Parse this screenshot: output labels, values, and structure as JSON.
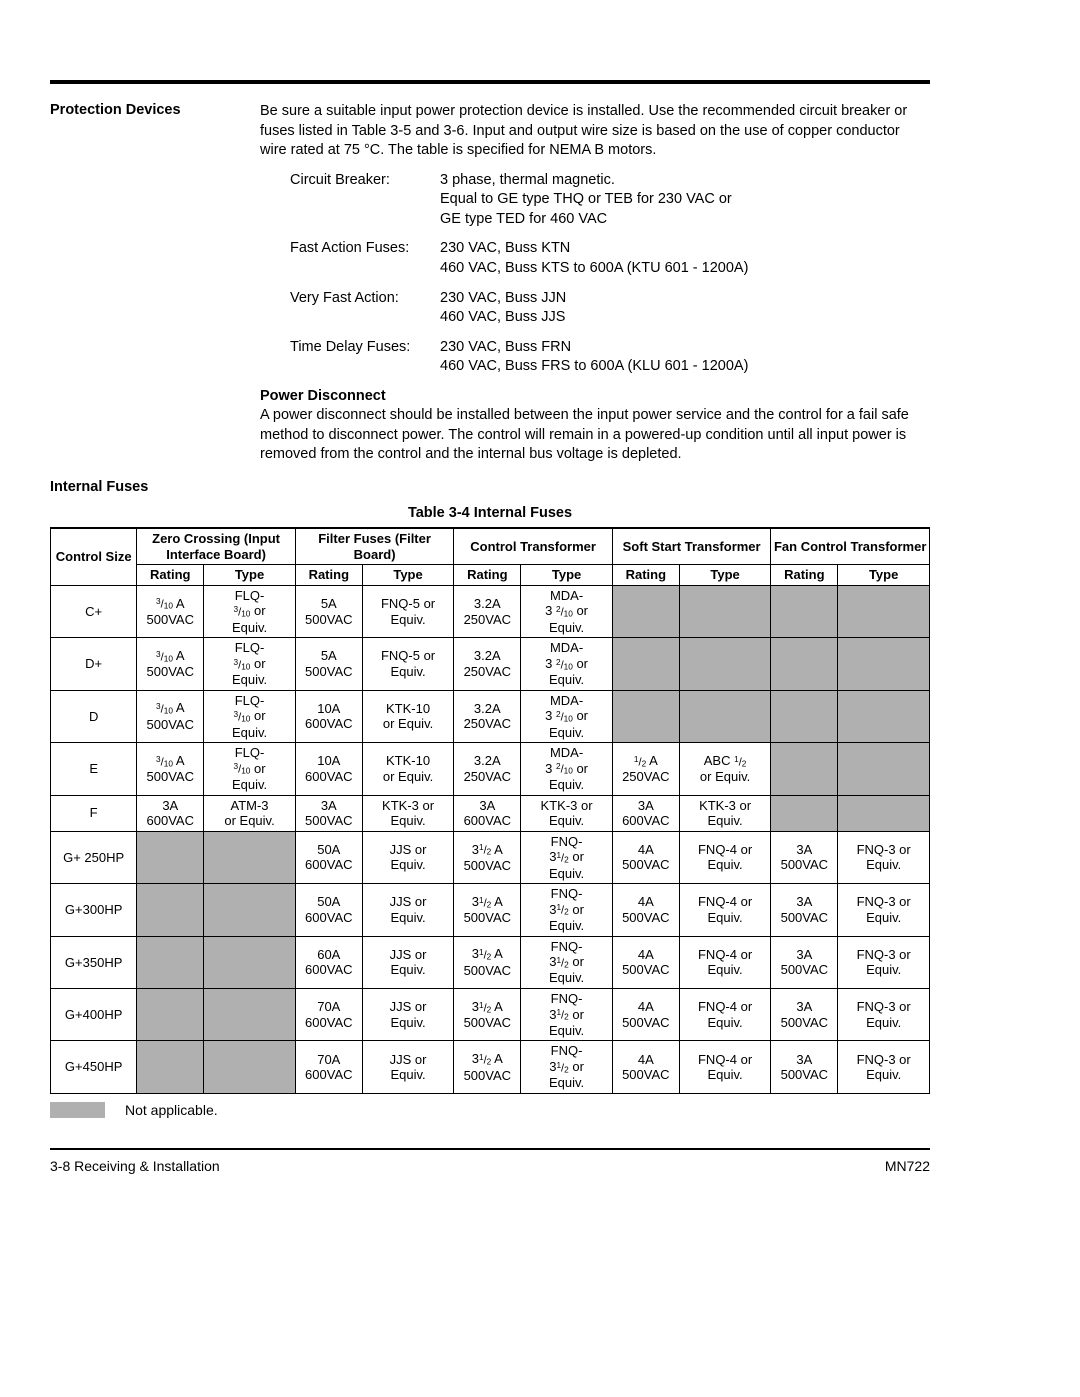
{
  "header_rule_color": "#000000",
  "na_bg_color": "#b0b0b0",
  "protection_devices": {
    "heading": "Protection Devices",
    "intro": "Be sure a suitable input power protection device is installed. Use the recommended circuit breaker or fuses listed in Table 3-5 and 3-6. Input and output wire size is based on the use of copper conductor wire rated at 75 °C. The table is specified for NEMA B motors.",
    "specs": [
      {
        "label": "Circuit Breaker:",
        "value_lines": [
          "3 phase, thermal magnetic.",
          "Equal to GE type THQ or TEB for 230 VAC or",
          "GE type TED for 460 VAC"
        ]
      },
      {
        "label": "Fast Action Fuses:",
        "value_lines": [
          "230 VAC, Buss KTN",
          "460 VAC, Buss KTS to 600A (KTU 601 - 1200A)"
        ]
      },
      {
        "label": "Very Fast Action:",
        "value_lines": [
          "230 VAC, Buss JJN",
          "460 VAC, Buss JJS"
        ]
      },
      {
        "label": "Time Delay Fuses:",
        "value_lines": [
          "230 VAC, Buss FRN",
          "460 VAC, Buss FRS to 600A (KLU 601 - 1200A)"
        ]
      }
    ],
    "disconnect_heading": "Power Disconnect",
    "disconnect_body": "A power disconnect should be installed between the input power service and the control for a fail safe method to disconnect power. The control will remain in a powered-up condition until all input power is removed from the control and the internal bus voltage is depleted."
  },
  "internal_fuses_heading": "Internal Fuses",
  "table_caption": "Table 3-4  Internal Fuses",
  "table": {
    "group_headers": [
      "Control Size",
      "Zero Crossing (Input Interface Board)",
      "Filter Fuses (Filter Board)",
      "Control Transformer",
      "Soft Start Transformer",
      "Fan Control Transformer"
    ],
    "sub_headers": [
      "Rating",
      "Type",
      "Rating",
      "Type",
      "Rating",
      "Type",
      "Rating",
      "Type",
      "Rating",
      "Type"
    ],
    "rows": [
      {
        "size": "C+",
        "cells": [
          {
            "html": "<span class='frac'><sup>3</sup>/<sub>10</sub></span> A<br>500VAC"
          },
          {
            "html": "FLQ-<br><span class='frac'><sup>3</sup>/<sub>10</sub></span> or<br>Equiv."
          },
          {
            "html": "5A<br>500VAC"
          },
          {
            "html": "FNQ-5 or<br>Equiv."
          },
          {
            "html": "3.2A<br>250VAC"
          },
          {
            "html": "MDA-<br>3 <span class='frac'><sup>2</sup>/<sub>10</sub></span> or<br>Equiv."
          },
          {
            "na": true
          },
          {
            "na": true
          },
          {
            "na": true
          },
          {
            "na": true
          }
        ]
      },
      {
        "size": "D+",
        "cells": [
          {
            "html": "<span class='frac'><sup>3</sup>/<sub>10</sub></span> A<br>500VAC"
          },
          {
            "html": "FLQ-<br><span class='frac'><sup>3</sup>/<sub>10</sub></span> or<br>Equiv."
          },
          {
            "html": "5A<br>500VAC"
          },
          {
            "html": "FNQ-5 or<br>Equiv."
          },
          {
            "html": "3.2A<br>250VAC"
          },
          {
            "html": "MDA-<br>3 <span class='frac'><sup>2</sup>/<sub>10</sub></span> or<br>Equiv."
          },
          {
            "na": true
          },
          {
            "na": true
          },
          {
            "na": true
          },
          {
            "na": true
          }
        ]
      },
      {
        "size": "D",
        "cells": [
          {
            "html": "<span class='frac'><sup>3</sup>/<sub>10</sub></span> A<br>500VAC"
          },
          {
            "html": "FLQ-<br><span class='frac'><sup>3</sup>/<sub>10</sub></span> or<br>Equiv."
          },
          {
            "html": "10A<br>600VAC"
          },
          {
            "html": "KTK-10<br>or Equiv."
          },
          {
            "html": "3.2A<br>250VAC"
          },
          {
            "html": "MDA-<br>3 <span class='frac'><sup>2</sup>/<sub>10</sub></span> or<br>Equiv."
          },
          {
            "na": true
          },
          {
            "na": true
          },
          {
            "na": true
          },
          {
            "na": true
          }
        ]
      },
      {
        "size": "E",
        "cells": [
          {
            "html": "<span class='frac'><sup>3</sup>/<sub>10</sub></span> A<br>500VAC"
          },
          {
            "html": "FLQ-<br><span class='frac'><sup>3</sup>/<sub>10</sub></span> or<br>Equiv."
          },
          {
            "html": "10A<br>600VAC"
          },
          {
            "html": "KTK-10<br>or Equiv."
          },
          {
            "html": "3.2A<br>250VAC"
          },
          {
            "html": "MDA-<br>3 <span class='frac'><sup>2</sup>/<sub>10</sub></span> or<br>Equiv."
          },
          {
            "html": "<span class='frac'><sup>1</sup>/<sub>2</sub></span> A<br>250VAC"
          },
          {
            "html": "ABC <span class='frac'><sup>1</sup>/<sub>2</sub></span><br>or Equiv."
          },
          {
            "na": true
          },
          {
            "na": true
          }
        ]
      },
      {
        "size": "F",
        "cells": [
          {
            "html": "3A<br>600VAC"
          },
          {
            "html": "ATM-3<br>or Equiv."
          },
          {
            "html": "3A<br>500VAC"
          },
          {
            "html": "KTK-3 or<br>Equiv."
          },
          {
            "html": "3A<br>600VAC"
          },
          {
            "html": "KTK-3 or<br>Equiv."
          },
          {
            "html": "3A<br>600VAC"
          },
          {
            "html": "KTK-3 or<br>Equiv."
          },
          {
            "na": true
          },
          {
            "na": true
          }
        ]
      },
      {
        "size": "G+ 250HP",
        "cells": [
          {
            "na": true
          },
          {
            "na": true
          },
          {
            "html": "50A<br>600VAC"
          },
          {
            "html": "JJS or<br>Equiv."
          },
          {
            "html": "3<span class='frac'><sup>1</sup>/<sub>2</sub></span> A<br>500VAC"
          },
          {
            "html": "FNQ-<br>3<span class='frac'><sup>1</sup>/<sub>2</sub></span> or<br>Equiv."
          },
          {
            "html": "4A<br>500VAC"
          },
          {
            "html": "FNQ-4 or<br>Equiv."
          },
          {
            "html": "3A<br>500VAC"
          },
          {
            "html": "FNQ-3 or<br>Equiv."
          }
        ]
      },
      {
        "size": "G+300HP",
        "cells": [
          {
            "na": true
          },
          {
            "na": true
          },
          {
            "html": "50A<br>600VAC"
          },
          {
            "html": "JJS or<br>Equiv."
          },
          {
            "html": "3<span class='frac'><sup>1</sup>/<sub>2</sub></span> A<br>500VAC"
          },
          {
            "html": "FNQ-<br>3<span class='frac'><sup>1</sup>/<sub>2</sub></span> or<br>Equiv."
          },
          {
            "html": "4A<br>500VAC"
          },
          {
            "html": "FNQ-4 or<br>Equiv."
          },
          {
            "html": "3A<br>500VAC"
          },
          {
            "html": "FNQ-3 or<br>Equiv."
          }
        ]
      },
      {
        "size": "G+350HP",
        "cells": [
          {
            "na": true
          },
          {
            "na": true
          },
          {
            "html": "60A<br>600VAC"
          },
          {
            "html": "JJS or<br>Equiv."
          },
          {
            "html": "3<span class='frac'><sup>1</sup>/<sub>2</sub></span> A<br>500VAC"
          },
          {
            "html": "FNQ-<br>3<span class='frac'><sup>1</sup>/<sub>2</sub></span> or<br>Equiv."
          },
          {
            "html": "4A<br>500VAC"
          },
          {
            "html": "FNQ-4 or<br>Equiv."
          },
          {
            "html": "3A<br>500VAC"
          },
          {
            "html": "FNQ-3 or<br>Equiv."
          }
        ]
      },
      {
        "size": "G+400HP",
        "cells": [
          {
            "na": true
          },
          {
            "na": true
          },
          {
            "html": "70A<br>600VAC"
          },
          {
            "html": "JJS or<br>Equiv."
          },
          {
            "html": "3<span class='frac'><sup>1</sup>/<sub>2</sub></span> A<br>500VAC"
          },
          {
            "html": "FNQ-<br>3<span class='frac'><sup>1</sup>/<sub>2</sub></span> or<br>Equiv."
          },
          {
            "html": "4A<br>500VAC"
          },
          {
            "html": "FNQ-4 or<br>Equiv."
          },
          {
            "html": "3A<br>500VAC"
          },
          {
            "html": "FNQ-3 or<br>Equiv."
          }
        ]
      },
      {
        "size": "G+450HP",
        "cells": [
          {
            "na": true
          },
          {
            "na": true
          },
          {
            "html": "70A<br>600VAC"
          },
          {
            "html": "JJS or<br>Equiv."
          },
          {
            "html": "3<span class='frac'><sup>1</sup>/<sub>2</sub></span> A<br>500VAC"
          },
          {
            "html": "FNQ-<br>3<span class='frac'><sup>1</sup>/<sub>2</sub></span> or<br>Equiv."
          },
          {
            "html": "4A<br>500VAC"
          },
          {
            "html": "FNQ-4 or<br>Equiv."
          },
          {
            "html": "3A<br>500VAC"
          },
          {
            "html": "FNQ-3 or<br>Equiv."
          }
        ]
      }
    ]
  },
  "legend_text": "Not applicable.",
  "footer_left": "3-8 Receiving & Installation",
  "footer_right": "MN722"
}
